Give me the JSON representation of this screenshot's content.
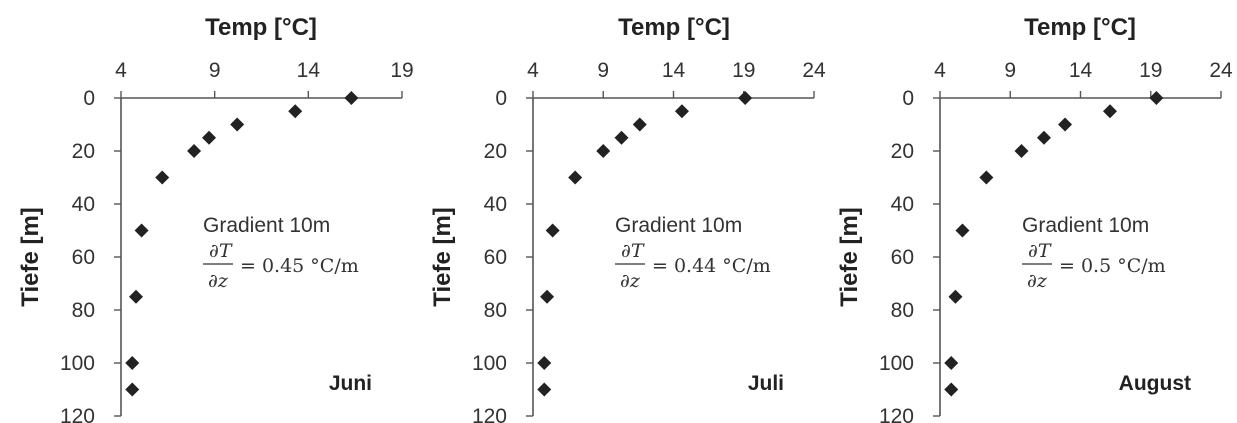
{
  "chart_data": [
    {
      "type": "scatter",
      "title": "Temp [°C]",
      "ylabel": "Tiefe [m]",
      "xlim": [
        4,
        19
      ],
      "xticks": [
        "4",
        "9",
        "14",
        "19"
      ],
      "ylim": [
        0,
        120
      ],
      "yticks": [
        "0",
        "20",
        "40",
        "60",
        "80",
        "100",
        "120"
      ],
      "y_inverted": true,
      "x_axis_position": "top",
      "grid": false,
      "marker": "diamond",
      "color": "#222222",
      "points": [
        {
          "x": 16.3,
          "y": 0
        },
        {
          "x": 13.3,
          "y": 5
        },
        {
          "x": 10.2,
          "y": 10
        },
        {
          "x": 8.7,
          "y": 15
        },
        {
          "x": 7.9,
          "y": 20
        },
        {
          "x": 6.2,
          "y": 30
        },
        {
          "x": 5.1,
          "y": 50
        },
        {
          "x": 4.8,
          "y": 75
        },
        {
          "x": 4.6,
          "y": 100
        },
        {
          "x": 4.6,
          "y": 110
        }
      ],
      "annotation": {
        "label": "Gradient 10m",
        "numerator": "∂T",
        "denominator": "∂z",
        "value": "= 0.45 °C/m"
      },
      "month": "Juni"
    },
    {
      "type": "scatter",
      "title": "Temp [°C]",
      "ylabel": "Tiefe [m]",
      "xlim": [
        4,
        24
      ],
      "xticks": [
        "4",
        "9",
        "14",
        "19",
        "24"
      ],
      "ylim": [
        0,
        120
      ],
      "yticks": [
        "0",
        "20",
        "40",
        "60",
        "80",
        "100",
        "120"
      ],
      "y_inverted": true,
      "x_axis_position": "top",
      "grid": false,
      "marker": "diamond",
      "color": "#222222",
      "points": [
        {
          "x": 19.1,
          "y": 0
        },
        {
          "x": 14.6,
          "y": 5
        },
        {
          "x": 11.6,
          "y": 10
        },
        {
          "x": 10.3,
          "y": 15
        },
        {
          "x": 9.0,
          "y": 20
        },
        {
          "x": 7.0,
          "y": 30
        },
        {
          "x": 5.4,
          "y": 50
        },
        {
          "x": 5.0,
          "y": 75
        },
        {
          "x": 4.8,
          "y": 100
        },
        {
          "x": 4.8,
          "y": 110
        }
      ],
      "annotation": {
        "label": "Gradient 10m",
        "numerator": "∂T",
        "denominator": "∂z",
        "value": "= 0.44 °C/m"
      },
      "month": "Juli"
    },
    {
      "type": "scatter",
      "title": "Temp [°C]",
      "ylabel": "Tiefe [m]",
      "xlim": [
        4,
        24
      ],
      "xticks": [
        "4",
        "9",
        "14",
        "19",
        "24"
      ],
      "ylim": [
        0,
        120
      ],
      "yticks": [
        "0",
        "20",
        "40",
        "60",
        "80",
        "100",
        "120"
      ],
      "y_inverted": true,
      "x_axis_position": "top",
      "grid": false,
      "marker": "diamond",
      "color": "#222222",
      "points": [
        {
          "x": 19.4,
          "y": 0
        },
        {
          "x": 16.1,
          "y": 5
        },
        {
          "x": 12.9,
          "y": 10
        },
        {
          "x": 11.4,
          "y": 15
        },
        {
          "x": 9.8,
          "y": 20
        },
        {
          "x": 7.3,
          "y": 30
        },
        {
          "x": 5.6,
          "y": 50
        },
        {
          "x": 5.1,
          "y": 75
        },
        {
          "x": 4.8,
          "y": 100
        },
        {
          "x": 4.8,
          "y": 110
        }
      ],
      "annotation": {
        "label": "Gradient 10m",
        "numerator": "∂T",
        "denominator": "∂z",
        "value": "= 0.5 °C/m"
      },
      "month": "August"
    }
  ]
}
